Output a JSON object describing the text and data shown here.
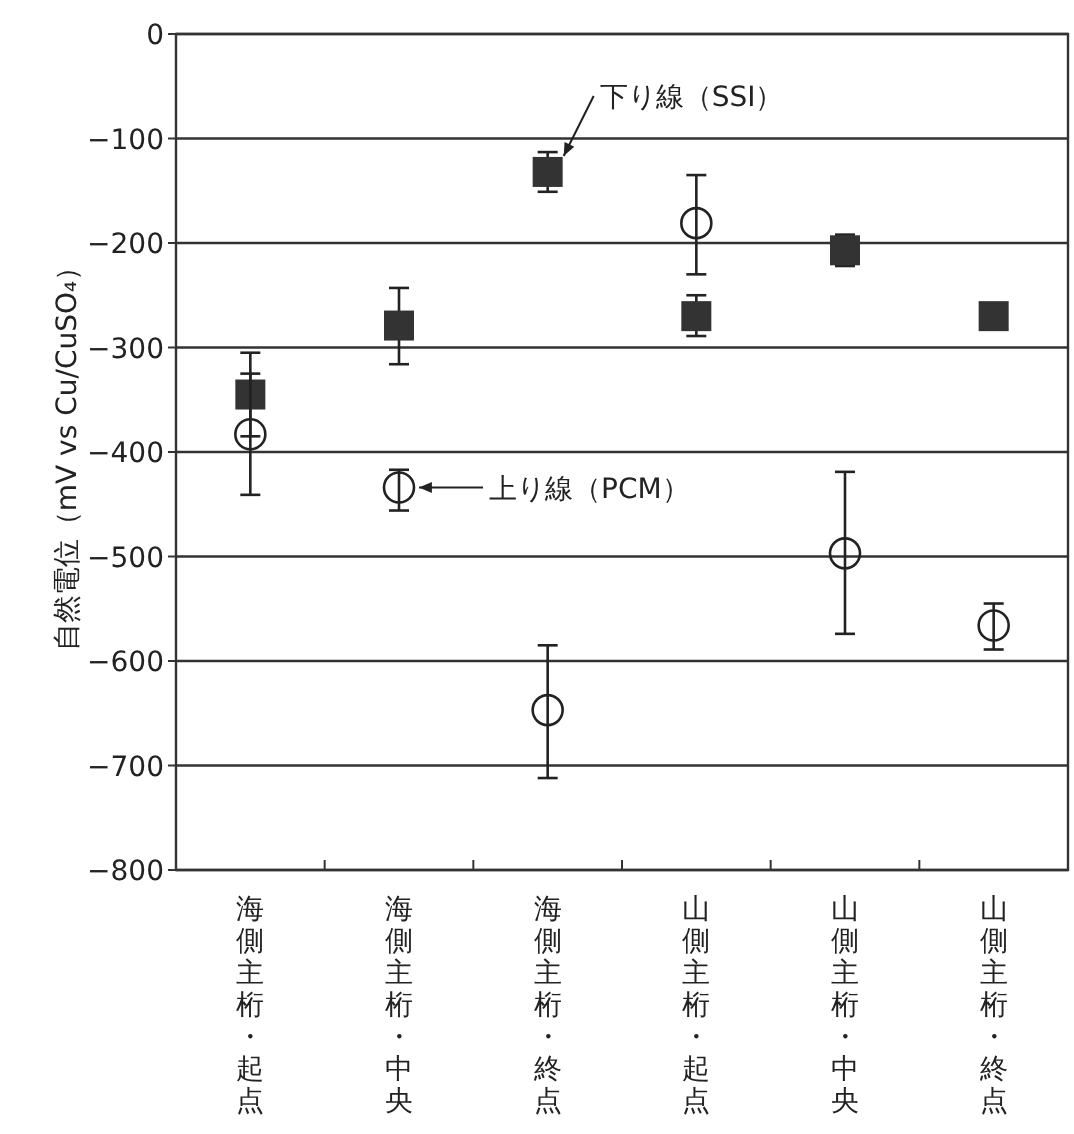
{
  "chart_data": {
    "type": "scatter",
    "ylabel": "自然電位（mV vs Cu/CuSO₄）",
    "categories": [
      "海側主桁・起点",
      "海側主桁・中央",
      "海側主桁・終点",
      "山側主桁・起点",
      "山側主桁・中央",
      "山側主桁・終点"
    ],
    "ylim": [
      -800,
      0
    ],
    "yticks": [
      -800,
      -700,
      -600,
      -500,
      -400,
      -300,
      -200,
      -100,
      0
    ],
    "grid": "y",
    "series": [
      {
        "name": "下り線（SSI）",
        "color": "#333333",
        "marker": "square",
        "values": [
          -345,
          -279,
          -132,
          -270,
          -207,
          -270
        ],
        "errors": [
          40,
          [
            -316,
            -243
          ],
          [
            -151,
            -113
          ],
          [
            -289,
            -250
          ],
          [
            -222,
            -192
          ],
          null
        ]
      },
      {
        "name": "上り線（PCM）",
        "color": "#222222",
        "marker": "circle",
        "values": [
          -383,
          -434,
          -647,
          -181,
          -497,
          -566
        ],
        "errors": [
          58,
          [
            -456,
            -417
          ],
          [
            -712,
            -585
          ],
          [
            -230,
            -135
          ],
          [
            -574,
            -419
          ],
          [
            -589,
            -545
          ]
        ]
      }
    ]
  }
}
